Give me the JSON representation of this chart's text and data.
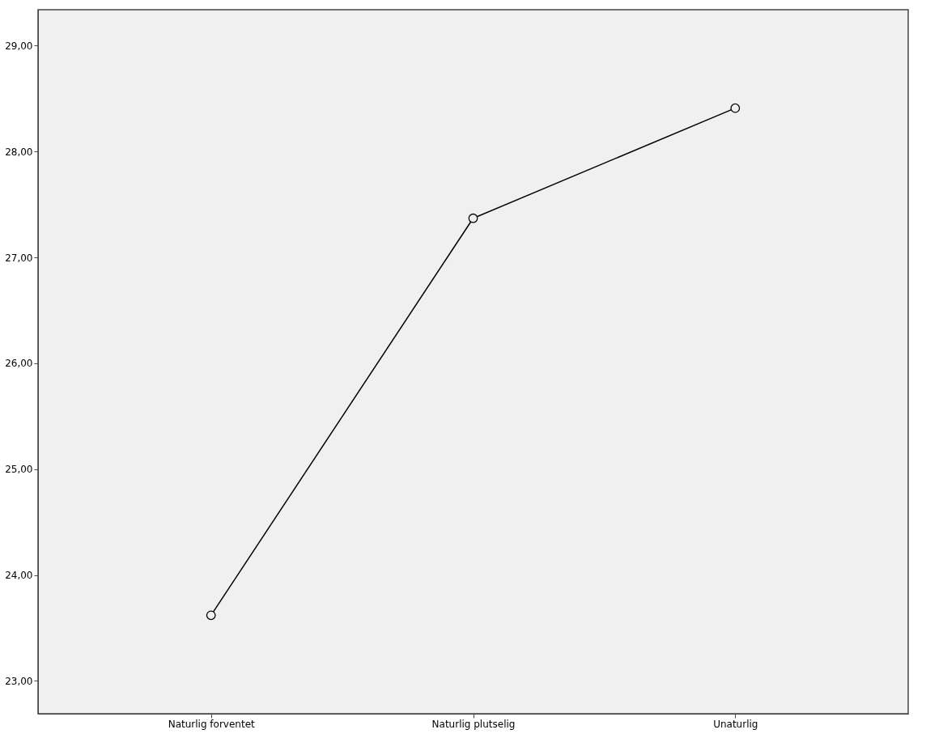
{
  "chart_data": {
    "type": "line",
    "categories": [
      "Naturlig forventet",
      "Naturlig plutselig",
      "Unaturlig"
    ],
    "series": [
      {
        "color": "#000000",
        "values": [
          23.62,
          27.37,
          28.41
        ]
      }
    ],
    "ylim": [
      22.69,
      29.34
    ],
    "yticks": [
      {
        "value": 23,
        "label": "23,00"
      },
      {
        "value": 24,
        "label": "24,00"
      },
      {
        "value": 25,
        "label": "25,00"
      },
      {
        "value": 26,
        "label": "26,00"
      },
      {
        "value": 27,
        "label": "27,00"
      },
      {
        "value": 28,
        "label": "28,00"
      },
      {
        "value": 29,
        "label": "29,00"
      }
    ],
    "grid": false,
    "legend": false,
    "marker": "circle",
    "line_style": "solid"
  }
}
